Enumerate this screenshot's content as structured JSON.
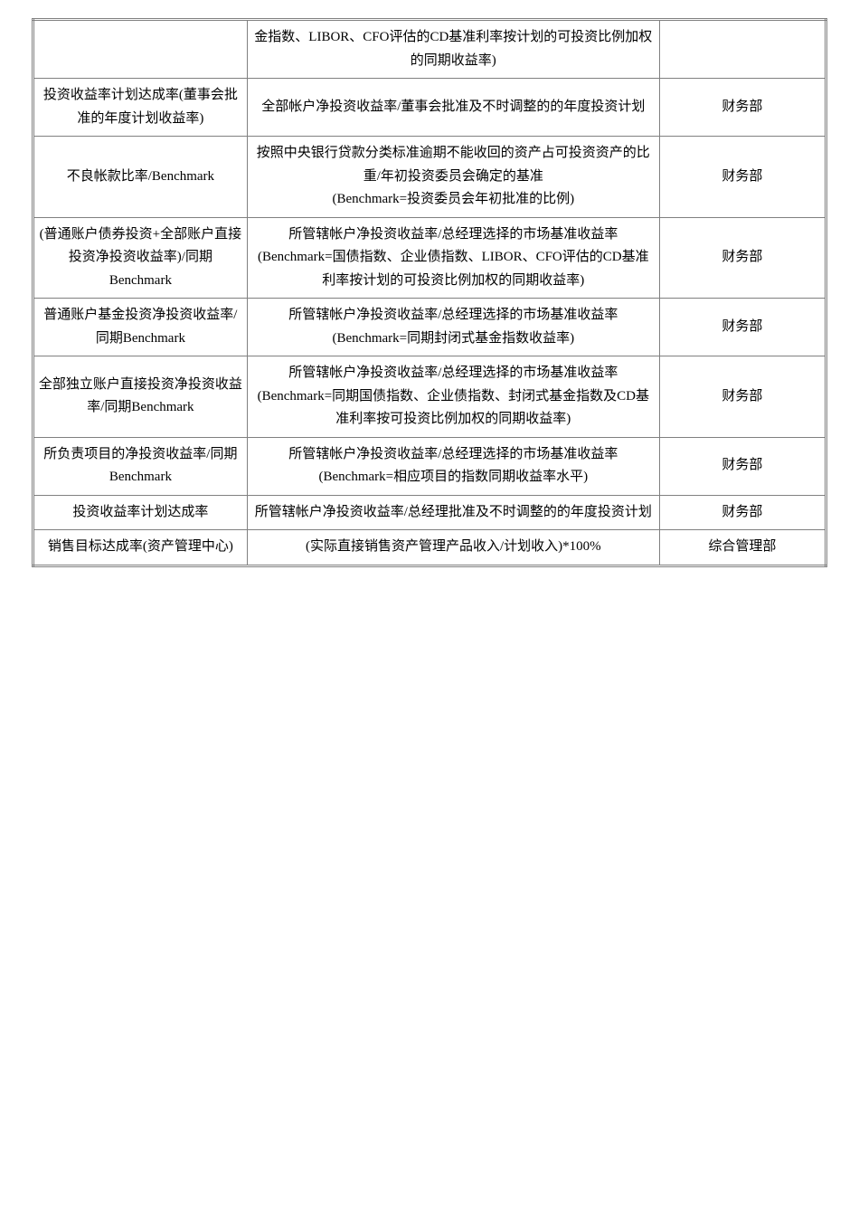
{
  "rows": [
    {
      "c1": "",
      "c2": "金指数、LIBOR、CFO评估的CD基准利率按计划的可投资比例加权的同期收益率)",
      "c3": ""
    },
    {
      "c1": "投资收益率计划达成率(董事会批准的年度计划收益率)",
      "c2": "全部帐户净投资收益率/董事会批准及不时调整的的年度投资计划",
      "c3": "财务部"
    },
    {
      "c1": "不良帐款比率/Benchmark",
      "c2": "按照中央银行贷款分类标准逾期不能收回的资产占可投资资产的比重/年初投资委员会确定的基准\n(Benchmark=投资委员会年初批准的比例)",
      "c3": "财务部"
    },
    {
      "c1": "(普通账户债券投资+全部账户直接投资净投资收益率)/同期Benchmark",
      "c2": "所管辖帐户净投资收益率/总经理选择的市场基准收益率\n(Benchmark=国债指数、企业债指数、LIBOR、CFO评估的CD基准利率按计划的可投资比例加权的同期收益率)",
      "c3": "财务部"
    },
    {
      "c1": "普通账户基金投资净投资收益率/同期Benchmark",
      "c2": "所管辖帐户净投资收益率/总经理选择的市场基准收益率\n(Benchmark=同期封闭式基金指数收益率)",
      "c3": "财务部"
    },
    {
      "c1": "全部独立账户直接投资净投资收益率/同期Benchmark",
      "c2": "所管辖帐户净投资收益率/总经理选择的市场基准收益率\n(Benchmark=同期国债指数、企业债指数、封闭式基金指数及CD基准利率按可投资比例加权的同期收益率)",
      "c3": "财务部"
    },
    {
      "c1": "所负责项目的净投资收益率/同期Benchmark",
      "c2": "所管辖帐户净投资收益率/总经理选择的市场基准收益率\n(Benchmark=相应项目的指数同期收益率水平)",
      "c3": "财务部"
    },
    {
      "c1": "投资收益率计划达成率",
      "c2": "所管辖帐户净投资收益率/总经理批准及不时调整的的年度投资计划",
      "c3": "财务部"
    },
    {
      "c1": "销售目标达成率(资产管理中心)",
      "c2": "(实际直接销售资产管理产品收入/计划收入)*100%",
      "c3": "综合管理部"
    }
  ]
}
